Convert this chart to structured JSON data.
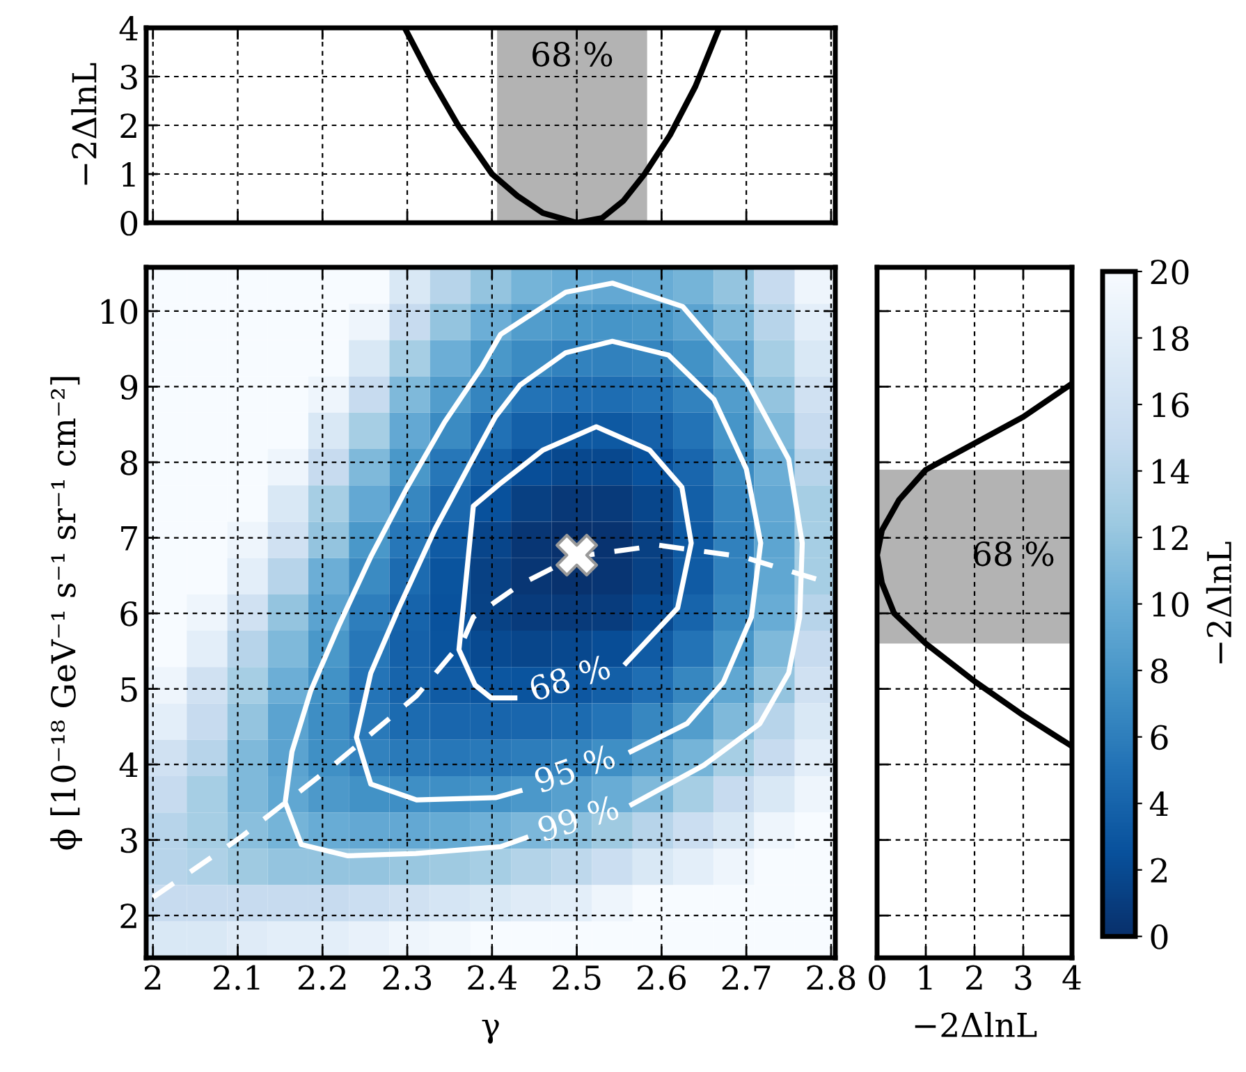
{
  "chart_data": [
    {
      "type": "line",
      "ylabel": "−2ΔlnL",
      "xlim": [
        1.992,
        2.805
      ],
      "ylim": [
        0,
        4
      ],
      "xticks": [
        2,
        2.1,
        2.2,
        2.3,
        2.4,
        2.5,
        2.6,
        2.7,
        2.8
      ],
      "yticks": [
        0,
        1,
        2,
        3,
        4
      ],
      "tick_labels": "y",
      "grid": true,
      "bands": [
        {
          "axis": "x",
          "from": 2.406,
          "to": 2.583,
          "label": "68 %",
          "color": "#b3b3b3"
        }
      ],
      "series": [
        {
          "color": "#000000",
          "x": [
            2.297,
            2.33,
            2.36,
            2.38,
            2.4,
            2.43,
            2.46,
            2.5,
            2.53,
            2.555,
            2.58,
            2.61,
            2.64,
            2.668
          ],
          "values": [
            4,
            2.9,
            2.0,
            1.5,
            1.0,
            0.55,
            0.2,
            0,
            0.1,
            0.45,
            1.0,
            1.8,
            2.8,
            4
          ]
        }
      ]
    },
    {
      "type": "heatmap",
      "xlabel": "γ",
      "ylabel": "ϕ [10⁻¹⁸ GeV⁻¹ s⁻¹ sr⁻¹ cm⁻²]",
      "clabel": "−2ΔlnL",
      "xlim": [
        1.992,
        2.805
      ],
      "ylim": [
        1.44,
        10.58
      ],
      "xticks": [
        2,
        2.1,
        2.2,
        2.3,
        2.4,
        2.5,
        2.6,
        2.7,
        2.8
      ],
      "yticks": [
        2,
        3,
        4,
        5,
        6,
        7,
        8,
        9,
        10
      ],
      "grid": true,
      "clim": [
        0,
        20
      ],
      "cticks": [
        0,
        2,
        4,
        6,
        8,
        10,
        12,
        14,
        16,
        18,
        20
      ],
      "cells": [
        [
          20,
          20,
          20,
          20,
          20,
          20,
          17,
          14,
          12,
          10.5,
          9.8,
          9.5,
          9.8,
          10.5,
          12,
          15,
          19
        ],
        [
          20,
          20,
          20,
          20,
          20,
          19,
          15,
          12,
          10,
          8.5,
          8,
          7.8,
          8,
          9,
          11,
          14,
          18
        ],
        [
          20,
          20,
          20,
          20,
          20,
          17,
          13,
          10,
          8,
          7,
          6.3,
          6.2,
          6.5,
          7.5,
          9.5,
          13,
          17
        ],
        [
          20,
          20,
          20,
          20,
          19,
          15,
          11,
          8.5,
          6.5,
          5.2,
          4.8,
          4.7,
          5.2,
          6.3,
          8.5,
          12,
          16
        ],
        [
          20,
          20,
          20,
          20,
          17,
          13,
          9.5,
          7,
          5,
          3.7,
          3.2,
          3.2,
          3.8,
          5.2,
          7.8,
          11,
          15
        ],
        [
          20,
          20,
          20,
          19,
          15,
          11,
          8,
          5.5,
          3.6,
          2.3,
          1.8,
          1.8,
          2.6,
          4.2,
          7,
          10,
          14
        ],
        [
          20,
          20,
          20,
          17,
          13,
          9.5,
          6.7,
          4.3,
          2.5,
          1.2,
          0.7,
          0.8,
          1.7,
          3.6,
          6.5,
          9.5,
          13
        ],
        [
          20,
          20,
          19,
          16,
          12,
          8,
          5.5,
          3.3,
          1.6,
          0.5,
          0.1,
          0.3,
          1.2,
          3.2,
          6.2,
          9.2,
          13
        ],
        [
          20,
          20,
          18,
          14,
          10,
          7,
          4.6,
          2.8,
          1.3,
          0.5,
          0.2,
          0.4,
          1.3,
          3.3,
          6.3,
          9.3,
          13
        ],
        [
          20,
          19,
          16,
          12,
          9,
          6,
          4,
          2.6,
          1.4,
          0.9,
          0.8,
          1,
          2,
          4,
          6.8,
          9.8,
          14
        ],
        [
          20,
          18,
          14,
          11,
          8,
          5.5,
          3.8,
          2.8,
          2,
          1.7,
          1.8,
          2.2,
          3.3,
          5.2,
          7.8,
          11,
          15
        ],
        [
          19,
          16,
          13,
          10,
          7.5,
          5.3,
          4,
          3.3,
          2.9,
          2.8,
          3,
          3.6,
          4.8,
          6.7,
          9.3,
          12,
          16
        ],
        [
          18,
          15,
          12,
          9,
          7.2,
          5.6,
          4.6,
          4.2,
          4.1,
          4.2,
          4.6,
          5.3,
          6.7,
          8.5,
          11,
          14,
          17
        ],
        [
          16,
          14,
          11,
          9,
          7.4,
          6.3,
          5.7,
          5.5,
          5.6,
          5.9,
          6.4,
          7.3,
          8.8,
          10.5,
          13,
          15,
          18
        ],
        [
          15,
          13,
          11,
          9.3,
          8.2,
          7.5,
          7.3,
          7.3,
          7.6,
          8.1,
          8.8,
          9.8,
          11,
          13,
          15,
          17,
          19
        ],
        [
          14,
          13,
          11.5,
          10.5,
          9.8,
          9.5,
          9.5,
          9.7,
          10.2,
          10.8,
          11.5,
          12.5,
          14,
          15.5,
          17,
          19,
          20
        ],
        [
          14,
          13.5,
          12.5,
          12,
          12,
          12,
          12.2,
          12.5,
          13,
          13.8,
          14.5,
          15.5,
          17,
          18,
          19,
          20,
          20
        ],
        [
          15,
          15,
          15,
          15,
          15,
          15.5,
          16,
          16.5,
          17,
          17.5,
          18,
          19,
          20,
          20,
          20,
          20,
          20
        ],
        [
          17,
          17,
          17.5,
          18,
          18,
          18.5,
          19,
          19.5,
          20,
          20,
          20,
          20,
          20,
          20,
          20,
          20,
          20
        ]
      ],
      "series": [
        {
          "type": "line",
          "name": "99 %",
          "color": "#ffffff",
          "line_style": "solid",
          "x": [
            2.44,
            2.41,
            2.31,
            2.23,
            2.175,
            2.156,
            2.164,
            2.186,
            2.219,
            2.257,
            2.3,
            2.344,
            2.388,
            2.41,
            2.444,
            2.487,
            2.542,
            2.625,
            2.7,
            2.75,
            2.766,
            2.763,
            2.75,
            2.716,
            2.65,
            2.565
          ],
          "values": [
            3.03,
            2.91,
            2.82,
            2.79,
            2.94,
            3.5,
            4.17,
            4.97,
            5.83,
            6.75,
            7.67,
            8.53,
            9.26,
            9.69,
            9.94,
            10.25,
            10.37,
            10.06,
            9.08,
            8.04,
            6.93,
            5.95,
            5.21,
            4.54,
            3.99,
            3.47
          ]
        },
        {
          "type": "line",
          "name": "95 %",
          "color": "#ffffff",
          "line_style": "solid",
          "x": [
            2.433,
            2.404,
            2.311,
            2.257,
            2.24,
            2.257,
            2.29,
            2.333,
            2.377,
            2.404,
            2.433,
            2.487,
            2.542,
            2.608,
            2.662,
            2.7,
            2.717,
            2.706,
            2.673,
            2.63,
            2.564
          ],
          "values": [
            3.65,
            3.56,
            3.53,
            3.74,
            4.36,
            5.21,
            6.07,
            7.12,
            8.04,
            8.6,
            9.02,
            9.45,
            9.6,
            9.42,
            8.83,
            7.91,
            6.93,
            5.95,
            5.09,
            4.54,
            4.17
          ]
        },
        {
          "type": "line",
          "name": "68 %",
          "color": "#ffffff",
          "line_style": "solid",
          "x": [
            2.427,
            2.399,
            2.38,
            2.361,
            2.366,
            2.378,
            2.411,
            2.46,
            2.523,
            2.586,
            2.624,
            2.635,
            2.619,
            2.558
          ],
          "values": [
            4.88,
            4.88,
            5.05,
            5.52,
            6.07,
            7.42,
            7.73,
            8.16,
            8.47,
            8.16,
            7.67,
            6.93,
            6.07,
            5.34
          ]
        },
        {
          "type": "line",
          "color": "#ffffff",
          "line_style": "dashed",
          "x": [
            2.0,
            2.104,
            2.213,
            2.311,
            2.366,
            2.378,
            2.433,
            2.498,
            2.597,
            2.695,
            2.804
          ],
          "values": [
            2.24,
            3.04,
            3.99,
            4.91,
            5.64,
            5.95,
            6.38,
            6.75,
            6.9,
            6.75,
            6.38
          ]
        },
        {
          "type": "scatter",
          "color": "#ffffff",
          "marker": "cross",
          "x": [
            2.5
          ],
          "values": [
            6.77
          ]
        }
      ]
    },
    {
      "type": "line",
      "orientation": "horizontal",
      "xlabel": "−2ΔlnL",
      "xlim": [
        0,
        4
      ],
      "ylim": [
        1.44,
        10.58
      ],
      "xticks": [
        0,
        1,
        2,
        3,
        4
      ],
      "yticks": [
        2,
        3,
        4,
        5,
        6,
        7,
        8,
        9,
        10
      ],
      "tick_labels": "x",
      "grid": true,
      "bands": [
        {
          "axis": "y",
          "from": 5.6,
          "to": 7.9,
          "label": "68 %",
          "color": "#b3b3b3"
        }
      ],
      "series": [
        {
          "color": "#000000",
          "x": [
            4.24,
            4.65,
            5.1,
            5.6,
            6.0,
            6.4,
            6.77,
            7.1,
            7.5,
            7.9,
            8.25,
            8.6,
            9.04
          ],
          "values": [
            4,
            3,
            2,
            1,
            0.35,
            0.1,
            0,
            0.1,
            0.45,
            1,
            2,
            3,
            4
          ]
        }
      ]
    }
  ]
}
